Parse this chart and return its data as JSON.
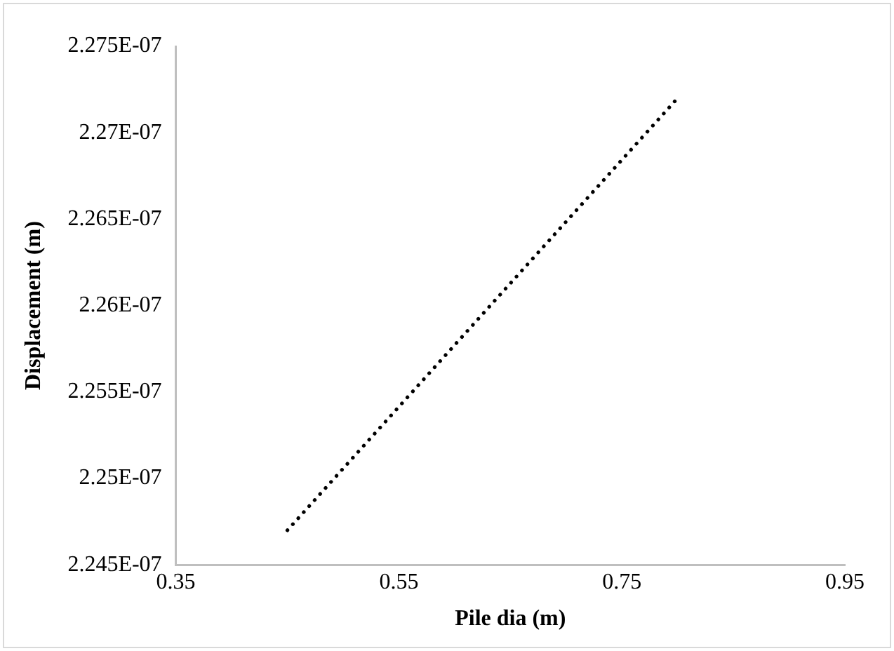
{
  "chart_data": {
    "type": "line",
    "xlabel": "Pile dia (m)",
    "ylabel": "Displacement (m)",
    "x": [
      0.45,
      0.8
    ],
    "series": [
      {
        "color": "#000000",
        "values": [
          2.247e-07,
          2.272e-07
        ]
      }
    ],
    "xlim": [
      0.35,
      0.95
    ],
    "xticks": [
      0.35,
      0.55,
      0.75,
      0.95
    ],
    "ylim": [
      2.245e-07,
      2.275e-07
    ],
    "yticks": [
      {
        "value": 2.245e-07,
        "label": "2.245E-07"
      },
      {
        "value": 2.25e-07,
        "label": "2.25E-07"
      },
      {
        "value": 2.255e-07,
        "label": "2.255E-07"
      },
      {
        "value": 2.26e-07,
        "label": "2.26E-07"
      },
      {
        "value": 2.265e-07,
        "label": "2.265E-07"
      },
      {
        "value": 2.27e-07,
        "label": "2.27E-07"
      },
      {
        "value": 2.275e-07,
        "label": "2.275E-07"
      }
    ],
    "grid": false,
    "legend": false,
    "marker": "none",
    "line_style": "dotted"
  }
}
